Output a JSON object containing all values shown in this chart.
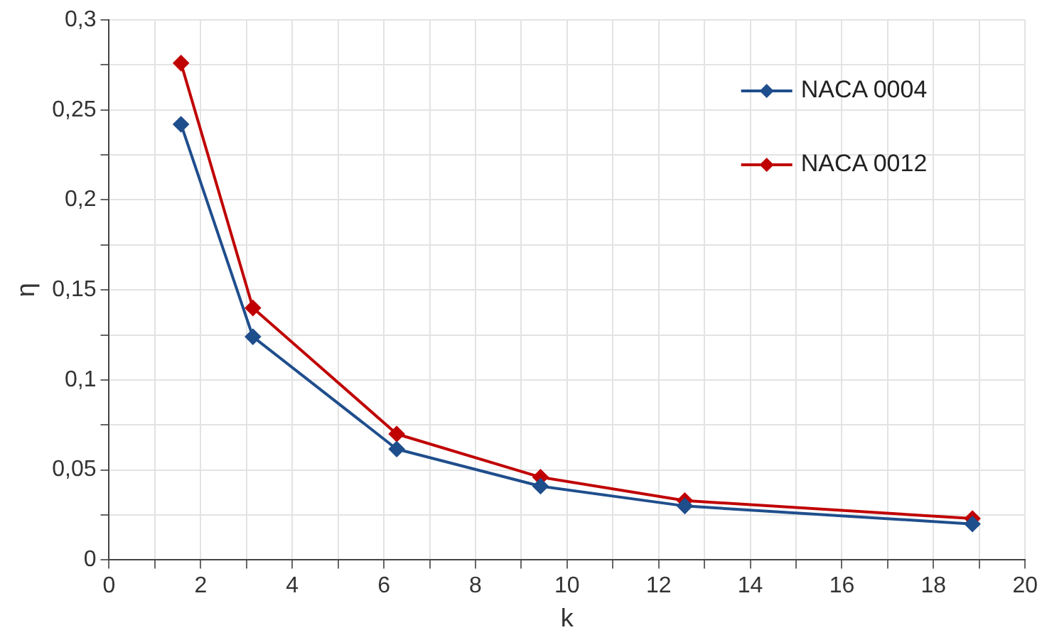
{
  "chart_data": {
    "type": "line",
    "xlabel": "k",
    "ylabel": "η",
    "x": [
      1.57,
      3.14,
      6.28,
      9.42,
      12.57,
      18.85
    ],
    "series": [
      {
        "name": "NACA 0004",
        "color": "#1f4e8c",
        "values": [
          0.242,
          0.124,
          0.0616,
          0.041,
          0.03,
          0.02
        ]
      },
      {
        "name": "NACA 0012",
        "color": "#c00000",
        "values": [
          0.276,
          0.14,
          0.07,
          0.046,
          0.033,
          0.023
        ]
      }
    ],
    "xlim": [
      0,
      20
    ],
    "xticks": [
      0,
      {
        "value": 1,
        "label": null
      },
      2,
      {
        "value": 3,
        "label": null
      },
      4,
      {
        "value": 5,
        "label": null
      },
      6,
      {
        "value": 7,
        "label": null
      },
      8,
      {
        "value": 9,
        "label": null
      },
      10,
      {
        "value": 11,
        "label": null
      },
      12,
      {
        "value": 13,
        "label": null
      },
      14,
      {
        "value": 15,
        "label": null
      },
      16,
      {
        "value": 17,
        "label": null
      },
      18,
      {
        "value": 19,
        "label": null
      },
      20
    ],
    "ylim": [
      0,
      0.3
    ],
    "yticks": [
      0,
      {
        "value": 0.025,
        "label": null
      },
      {
        "value": 0.05,
        "label": "0,05"
      },
      {
        "value": 0.075,
        "label": null
      },
      {
        "value": 0.1,
        "label": "0,1"
      },
      {
        "value": 0.125,
        "label": null
      },
      {
        "value": 0.15,
        "label": "0,15"
      },
      {
        "value": 0.175,
        "label": null
      },
      {
        "value": 0.2,
        "label": "0,2"
      },
      {
        "value": 0.225,
        "label": null
      },
      {
        "value": 0.25,
        "label": "0,25"
      },
      {
        "value": 0.275,
        "label": null
      },
      {
        "value": 0.3,
        "label": "0,3"
      }
    ],
    "grid": true,
    "legend": "top right",
    "marker": "diamond",
    "line_style": "solid"
  }
}
